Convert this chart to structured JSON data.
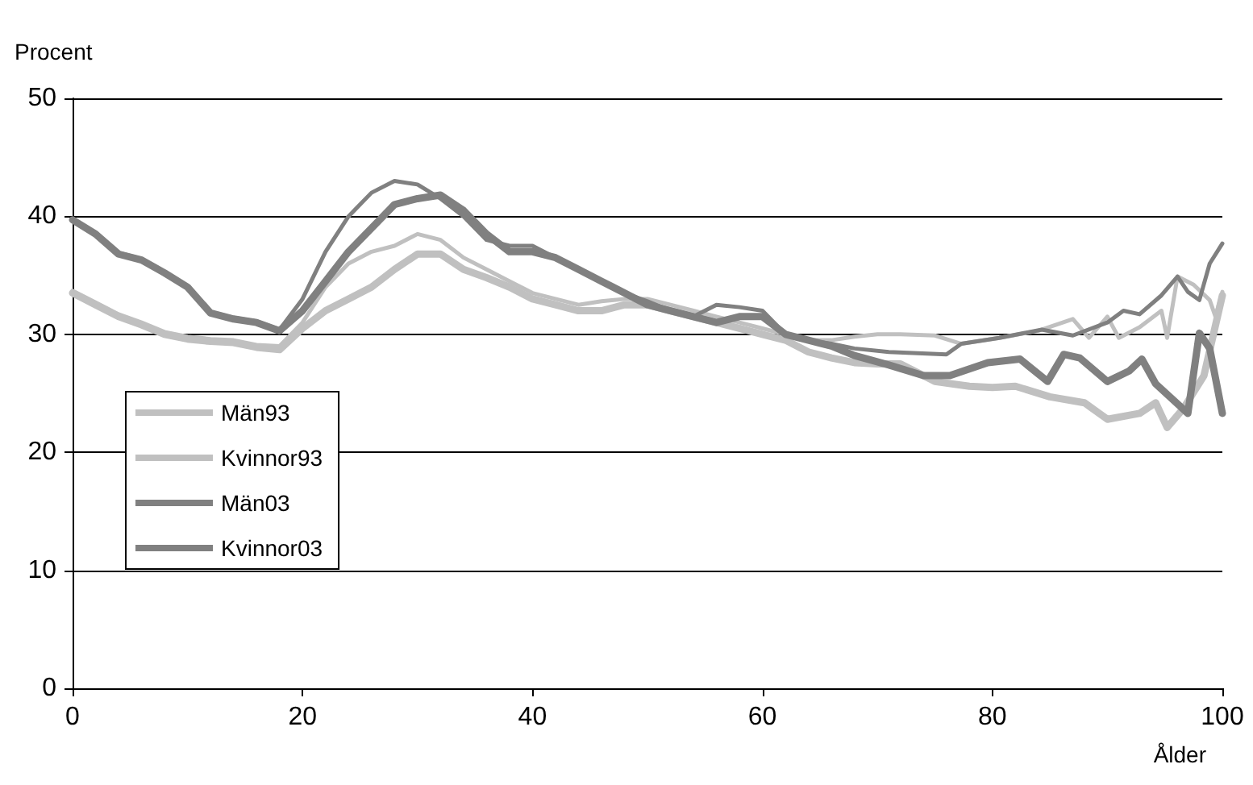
{
  "chart_data": {
    "type": "line",
    "ylabel": "Procent",
    "xlabel": "Ålder",
    "xlim": [
      0,
      100
    ],
    "xticks": [
      0,
      20,
      40,
      60,
      80,
      100
    ],
    "ylim": [
      0,
      50
    ],
    "yticks": [
      0,
      10,
      20,
      30,
      40,
      50
    ],
    "grid": "y",
    "legend": "bottom left",
    "marker": "none",
    "line_style": "solid",
    "series": [
      {
        "name": "Män93",
        "color": "#c0c0c0",
        "x": [
          0,
          2,
          4,
          6,
          8,
          10,
          12,
          14,
          16,
          18,
          20,
          22,
          24,
          26,
          28,
          30,
          32,
          34,
          36,
          38,
          40,
          42,
          44,
          46,
          48,
          50,
          52,
          54,
          56,
          58,
          60,
          62,
          64,
          66,
          68,
          70,
          72,
          75,
          78,
          80,
          82,
          85,
          88,
          90,
          92.8,
          94.2,
          95.2,
          96.6,
          98.4,
          100
        ],
        "values": [
          33.5,
          32.5,
          31.5,
          30.8,
          30,
          29.6,
          29.4,
          29.3,
          28.9,
          28.7,
          30.5,
          32,
          33,
          34,
          35.5,
          36.8,
          36.8,
          35.5,
          34.8,
          34,
          33,
          32.5,
          32,
          32,
          32.5,
          32.5,
          32,
          31.5,
          31,
          30.5,
          30,
          29.5,
          28.5,
          28,
          27.6,
          27.5,
          27.5,
          26,
          25.6,
          25.5,
          25.6,
          24.7,
          24.2,
          22.8,
          23.3,
          24.2,
          22.1,
          23.7,
          26.5,
          33.3
        ]
      },
      {
        "name": "Kvinnor93",
        "color": "#c0c0c0",
        "x": [
          0,
          2,
          4,
          6,
          8,
          10,
          12,
          14,
          16,
          18,
          20,
          22,
          24,
          26,
          28,
          30,
          32,
          34,
          36,
          38,
          40,
          42,
          44,
          46,
          48,
          50,
          52,
          54,
          56,
          58,
          60,
          62,
          64,
          66,
          68,
          70,
          72,
          75,
          77.3,
          80.6,
          84,
          87,
          88.4,
          90,
          91,
          92.8,
          94.7,
          95.2,
          96.1,
          97.5,
          98.9,
          99.4,
          100
        ],
        "values": [
          33.7,
          32.7,
          31.7,
          31,
          30.2,
          29.8,
          29.6,
          29.5,
          29.1,
          29,
          31,
          34,
          36,
          37,
          37.5,
          38.5,
          38,
          36.5,
          35.5,
          34.5,
          33.5,
          33,
          32.5,
          32.8,
          33,
          33,
          32.5,
          32,
          31.5,
          31,
          30.5,
          30,
          29.5,
          29.5,
          29.8,
          30,
          30,
          29.9,
          29.2,
          29.7,
          30.3,
          31.3,
          29.7,
          31.5,
          29.7,
          30.6,
          32,
          29.7,
          34.9,
          34.2,
          32.9,
          31.5,
          33.6
        ]
      },
      {
        "name": "Män03",
        "color": "#808080",
        "x": [
          0,
          2,
          4,
          6,
          8,
          10,
          12,
          14,
          16,
          18,
          20,
          22,
          24,
          26,
          28,
          30,
          32,
          34,
          36,
          38,
          40,
          42,
          44,
          46,
          48,
          50,
          52,
          54,
          56,
          58,
          60,
          62,
          64,
          66,
          68,
          71,
          74,
          76.3,
          79.6,
          82.4,
          84.8,
          86.2,
          87.6,
          90,
          91.9,
          93,
          94.2,
          97,
          98,
          98.9,
          100
        ],
        "values": [
          39.7,
          38.5,
          36.8,
          36.3,
          35.2,
          34,
          31.8,
          31.3,
          31,
          30.3,
          32,
          34.5,
          37,
          39,
          41,
          41.5,
          41.8,
          40.5,
          38.5,
          37,
          37,
          36.5,
          35.5,
          34.5,
          33.5,
          32.5,
          32,
          31.5,
          31,
          31.5,
          31.5,
          30,
          29.5,
          29,
          28.2,
          27.4,
          26.5,
          26.5,
          27.6,
          27.9,
          26,
          28.3,
          28,
          26,
          26.9,
          27.9,
          25.8,
          23.3,
          30.1,
          28.8,
          23.3
        ]
      },
      {
        "name": "Kvinnor03",
        "color": "#808080",
        "x": [
          0,
          2,
          4,
          6,
          8,
          10,
          12,
          14,
          16,
          18,
          20,
          22,
          24,
          26,
          28,
          30,
          32,
          34,
          36,
          38,
          40,
          42,
          44,
          46,
          48,
          50,
          52,
          54,
          56,
          58,
          60,
          62,
          64,
          66,
          68,
          71,
          76,
          77.3,
          80.6,
          84.3,
          87,
          90,
          91.4,
          92.8,
          94.7,
          96.1,
          97,
          98,
          98.9,
          100
        ],
        "values": [
          39.8,
          38.6,
          36.9,
          36.4,
          35.3,
          34.1,
          31.9,
          31.4,
          31.1,
          30.4,
          33,
          37,
          40,
          42,
          43,
          42.7,
          41.5,
          40,
          38,
          37.5,
          37.5,
          36.5,
          35.5,
          34.5,
          33.5,
          32.8,
          32,
          31.5,
          32.5,
          32.3,
          32,
          30,
          29.5,
          29.2,
          28.8,
          28.5,
          28.3,
          29.2,
          29.7,
          30.4,
          29.9,
          31,
          32,
          31.7,
          33.3,
          34.9,
          33.6,
          32.9,
          36,
          37.7
        ]
      }
    ]
  }
}
